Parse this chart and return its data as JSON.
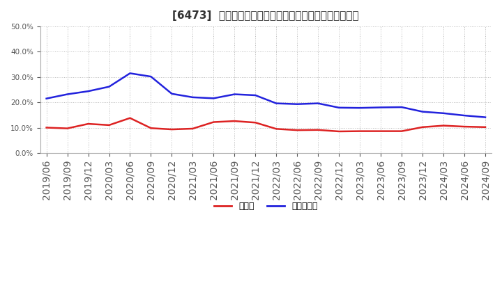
{
  "title": "[6473]  現預金、有利子負債の総資産に対する比率の推移",
  "x_labels": [
    "2019/06",
    "2019/09",
    "2019/12",
    "2020/03",
    "2020/06",
    "2020/09",
    "2020/12",
    "2021/03",
    "2021/06",
    "2021/09",
    "2021/12",
    "2022/03",
    "2022/06",
    "2022/09",
    "2022/12",
    "2023/03",
    "2023/06",
    "2023/09",
    "2023/12",
    "2024/03",
    "2024/06",
    "2024/09"
  ],
  "cash": [
    0.1,
    0.097,
    0.115,
    0.11,
    0.138,
    0.098,
    0.093,
    0.096,
    0.122,
    0.126,
    0.12,
    0.095,
    0.09,
    0.091,
    0.085,
    0.086,
    0.086,
    0.086,
    0.102,
    0.108,
    0.104,
    0.102
  ],
  "debt": [
    0.215,
    0.232,
    0.244,
    0.262,
    0.315,
    0.302,
    0.234,
    0.22,
    0.216,
    0.232,
    0.228,
    0.196,
    0.193,
    0.196,
    0.179,
    0.178,
    0.18,
    0.181,
    0.163,
    0.157,
    0.148,
    0.141
  ],
  "cash_color": "#dd2222",
  "debt_color": "#2222dd",
  "background_color": "#ffffff",
  "grid_color": "#bbbbbb",
  "ylim": [
    0.0,
    0.5
  ],
  "yticks": [
    0.0,
    0.1,
    0.2,
    0.3,
    0.4,
    0.5
  ],
  "legend_cash": "現預金",
  "legend_debt": "有利子負債",
  "title_fontsize": 11,
  "tick_fontsize": 7.5,
  "legend_fontsize": 9
}
